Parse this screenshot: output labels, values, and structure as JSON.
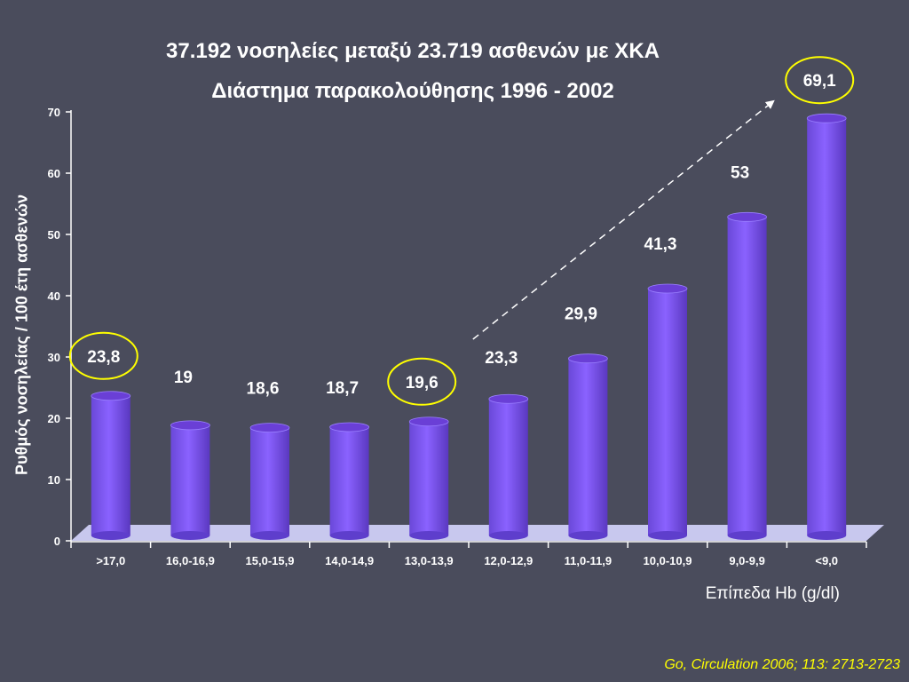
{
  "chart_data": {
    "type": "bar",
    "title": "37.192 νοσηλείες μεταξύ 23.719 ασθενών με ΧΚΑ",
    "subtitle": "Διάστημα παρακολούθησης 1996 - 2002",
    "xlabel": "Επίπεδα Hb (g/dl)",
    "ylabel": "Ρυθμός νοσηλείας / 100 έτη ασθενών",
    "categories": [
      ">17,0",
      "16,0-16,9",
      "15,0-15,9",
      "14,0-14,9",
      "13,0-13,9",
      "12,0-12,9",
      "11,0-11,9",
      "10,0-10,9",
      "9,0-9,9",
      "<9,0"
    ],
    "values": [
      23.8,
      19,
      18.6,
      18.7,
      19.6,
      23.3,
      29.9,
      41.3,
      53,
      69.1
    ],
    "value_labels": [
      "23,8",
      "19",
      "18,6",
      "18,7",
      "19,6",
      "23,3",
      "29,9",
      "41,3",
      "53",
      "69,1"
    ],
    "circled_categories": [
      ">17,0",
      "13,0-13,9",
      "<9,0"
    ],
    "ylim": [
      0,
      70
    ],
    "yticks": [
      "0",
      "10",
      "20",
      "30",
      "40",
      "50",
      "60",
      "70"
    ],
    "grid": false,
    "legend": "none",
    "annotation": "dashed trend arrow from 12,0-12,9 to <9,0"
  },
  "citation": "Go, Circulation 2006; 113: 2713-2723",
  "colors": {
    "background": "#4a4c5c",
    "bar": "#7b50ef",
    "bar_top": "#6a3fd6",
    "floor": "#c8c8ee",
    "circle": "#ffff00",
    "citation": "#ffff00",
    "text": "#ffffff"
  }
}
